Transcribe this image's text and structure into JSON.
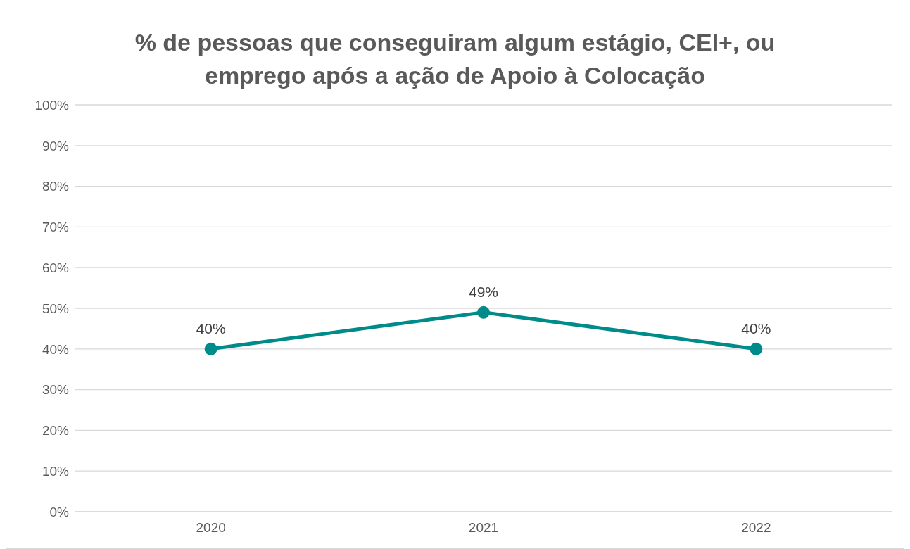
{
  "chart_data": {
    "type": "line",
    "title": "% de pessoas que conseguiram algum estágio, CEI+, ou emprego após a ação de Apoio à Colocação",
    "categories": [
      "2020",
      "2021",
      "2022"
    ],
    "series": [
      {
        "color": "#008b8b",
        "values": [
          40,
          49,
          40
        ],
        "value_labels": [
          "40%",
          "49%",
          "40%"
        ]
      }
    ],
    "ylim": [
      0,
      100
    ],
    "yticks": [
      {
        "value": 0,
        "label": "0%"
      },
      {
        "value": 10,
        "label": "10%"
      },
      {
        "value": 20,
        "label": "20%"
      },
      {
        "value": 30,
        "label": "30%"
      },
      {
        "value": 40,
        "label": "40%"
      },
      {
        "value": 50,
        "label": "50%"
      },
      {
        "value": 60,
        "label": "60%"
      },
      {
        "value": 70,
        "label": "70%"
      },
      {
        "value": 80,
        "label": "80%"
      },
      {
        "value": 90,
        "label": "90%"
      },
      {
        "value": 100,
        "label": "100%"
      }
    ],
    "grid": "y",
    "marker": "circle",
    "line_style": "solid",
    "legend": false
  }
}
